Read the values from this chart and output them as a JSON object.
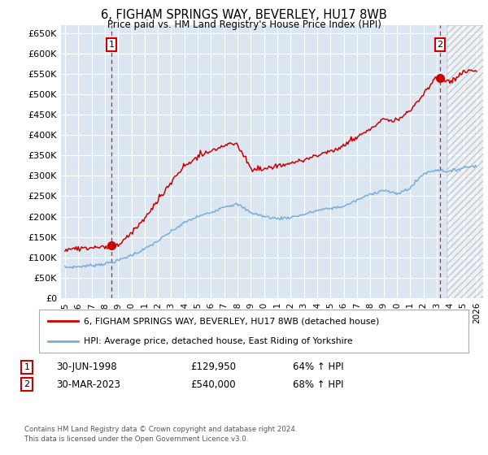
{
  "title": "6, FIGHAM SPRINGS WAY, BEVERLEY, HU17 8WB",
  "subtitle": "Price paid vs. HM Land Registry's House Price Index (HPI)",
  "plot_bg_color": "#dce6f1",
  "ylim": [
    0,
    670000
  ],
  "yticks": [
    0,
    50000,
    100000,
    150000,
    200000,
    250000,
    300000,
    350000,
    400000,
    450000,
    500000,
    550000,
    600000,
    650000
  ],
  "ytick_labels": [
    "£0",
    "£50K",
    "£100K",
    "£150K",
    "£200K",
    "£250K",
    "£300K",
    "£350K",
    "£400K",
    "£450K",
    "£500K",
    "£550K",
    "£600K",
    "£650K"
  ],
  "xtick_years": [
    1995,
    1996,
    1997,
    1998,
    1999,
    2000,
    2001,
    2002,
    2003,
    2004,
    2005,
    2006,
    2007,
    2008,
    2009,
    2010,
    2011,
    2012,
    2013,
    2014,
    2015,
    2016,
    2017,
    2018,
    2019,
    2020,
    2021,
    2022,
    2023,
    2024,
    2025,
    2026
  ],
  "legend_line1": "6, FIGHAM SPRINGS WAY, BEVERLEY, HU17 8WB (detached house)",
  "legend_line2": "HPI: Average price, detached house, East Riding of Yorkshire",
  "point1_date": "30-JUN-1998",
  "point1_price": "£129,950",
  "point1_hpi": "64% ↑ HPI",
  "point2_date": "30-MAR-2023",
  "point2_price": "£540,000",
  "point2_hpi": "68% ↑ HPI",
  "footnote": "Contains HM Land Registry data © Crown copyright and database right 2024.\nThis data is licensed under the Open Government Licence v3.0.",
  "red_color": "#cc0000",
  "blue_color": "#7aaddc",
  "marker1_x": 1998.5,
  "marker1_y": 129950,
  "marker2_x": 2023.25,
  "marker2_y": 540000,
  "hatch_start": 2023.75,
  "xlim_left": 1994.7,
  "xlim_right": 2026.5
}
